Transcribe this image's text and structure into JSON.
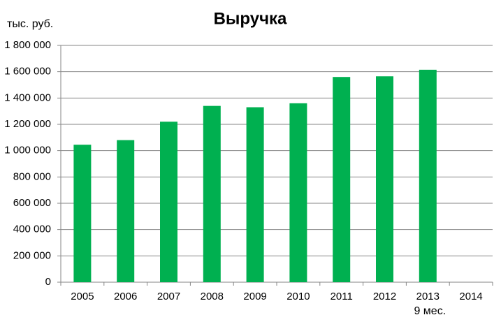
{
  "chart_data": {
    "type": "bar",
    "title": "Выручка",
    "y_axis_label": "тыс. руб.",
    "categories": [
      "2005",
      "2006",
      "2007",
      "2008",
      "2009",
      "2010",
      "2011",
      "2012",
      "2013",
      "2014"
    ],
    "annotation": "9 мес.",
    "values": [
      1045000,
      1080000,
      1220000,
      1340000,
      1330000,
      1360000,
      1560000,
      1565000,
      1615000,
      null
    ],
    "color": "#00b050",
    "ylim": [
      0,
      1800000
    ],
    "yticks": [
      0,
      {
        "value": 200000,
        "label": "200 000"
      },
      {
        "value": 400000,
        "label": "400 000"
      },
      {
        "value": 600000,
        "label": "600 000"
      },
      {
        "value": 800000,
        "label": "800 000"
      },
      {
        "value": 1000000,
        "label": "1 000 000"
      },
      {
        "value": 1200000,
        "label": "1 200 000"
      },
      {
        "value": 1400000,
        "label": "1 400 000"
      },
      {
        "value": 1600000,
        "label": "1 600 000"
      },
      {
        "value": 1800000,
        "label": "1 800 000"
      }
    ],
    "grid": true
  }
}
